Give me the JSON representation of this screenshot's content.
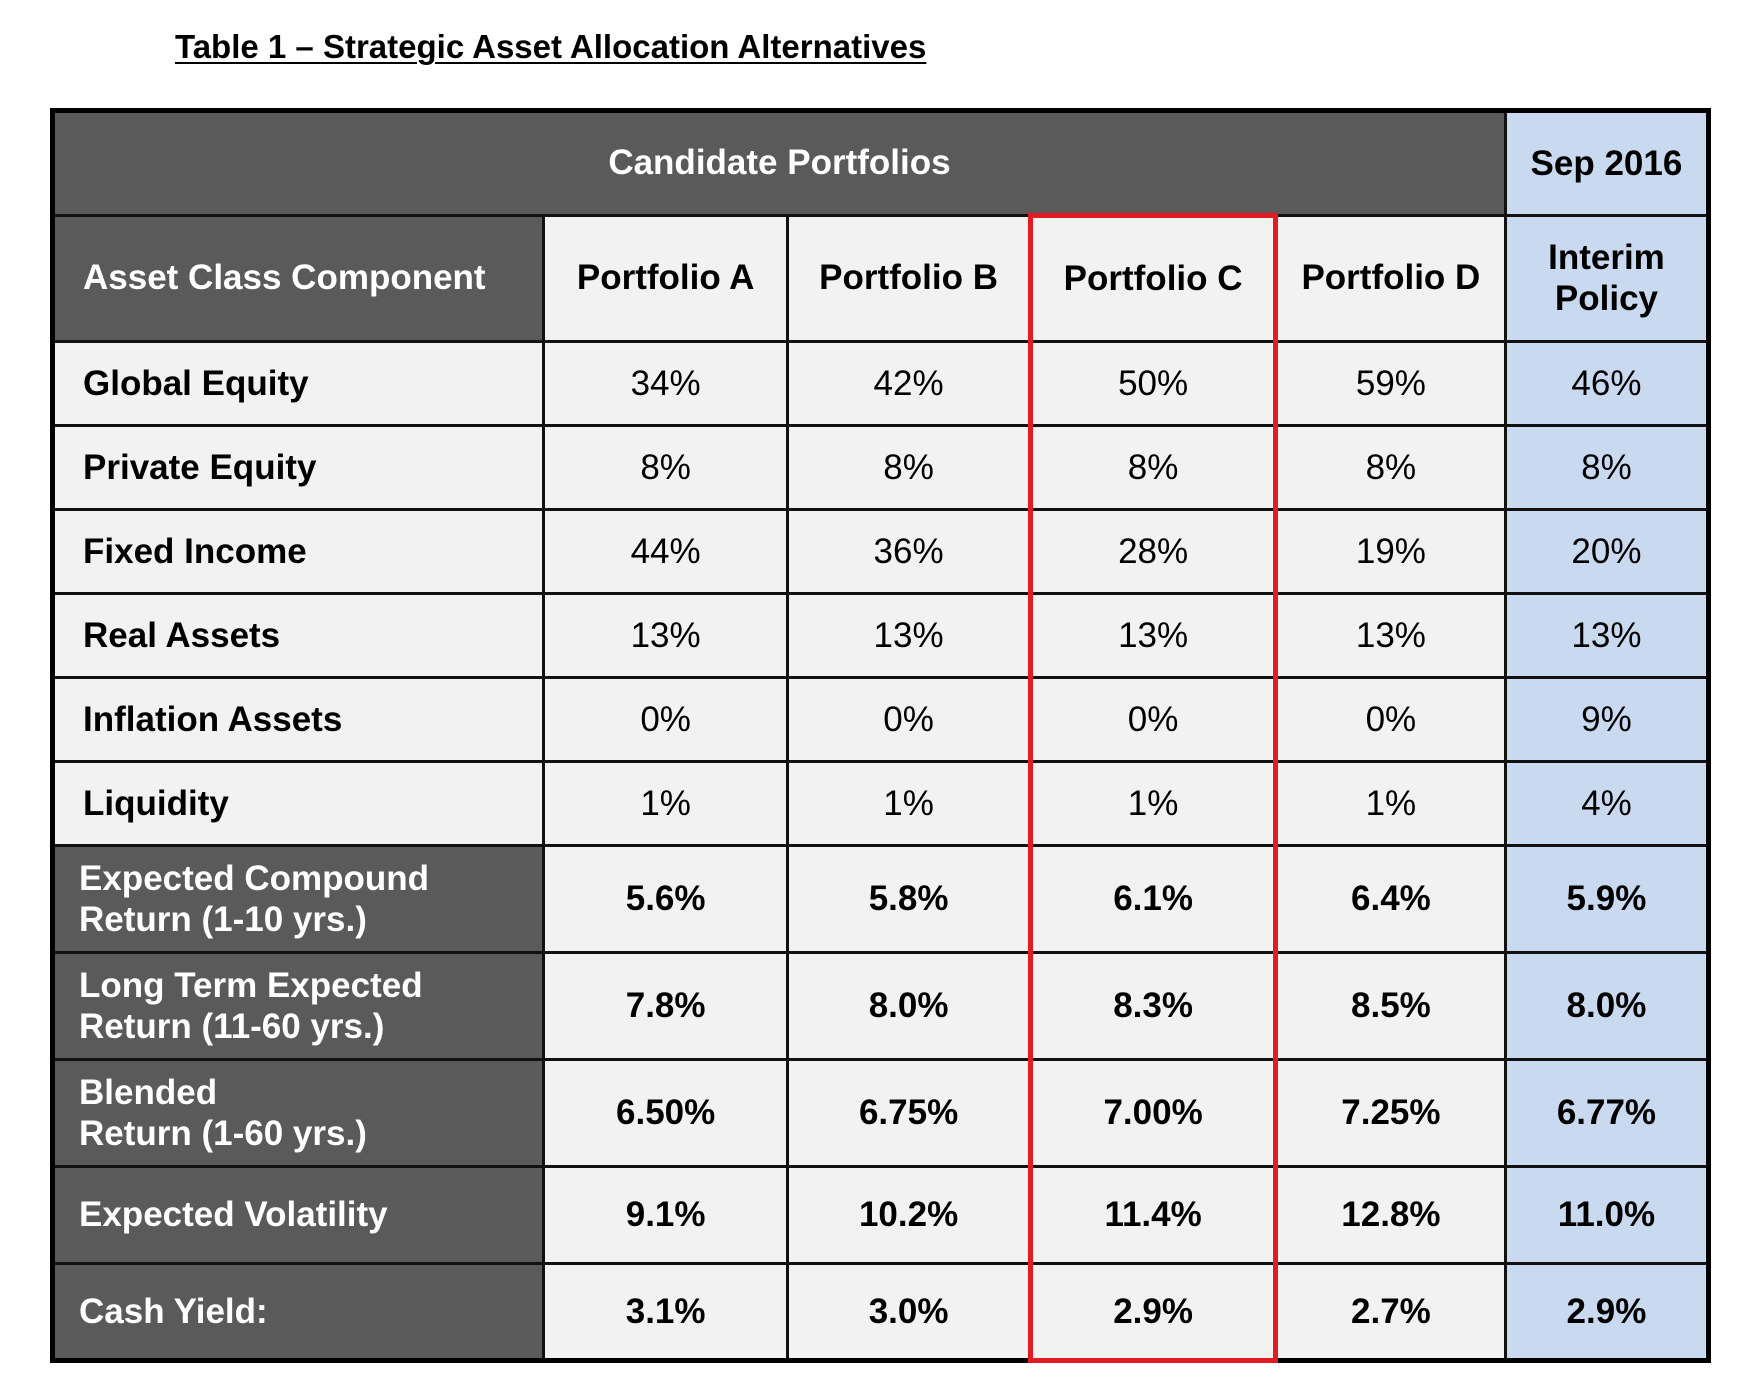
{
  "title": "Table 1 – Strategic Asset Allocation Alternatives",
  "band": {
    "candidate_label": "Candidate Portfolios",
    "policy_label": "Sep 2016"
  },
  "header": {
    "asset_class": "Asset Class Component",
    "portfolio_a": "Portfolio A",
    "portfolio_b": "Portfolio B",
    "portfolio_c": "Portfolio C",
    "portfolio_d": "Portfolio D",
    "interim_line1": "Interim",
    "interim_line2": "Policy"
  },
  "allocations": [
    {
      "label": "Global Equity",
      "a": "34%",
      "b": "42%",
      "c": "50%",
      "d": "59%",
      "policy": "46%"
    },
    {
      "label": "Private Equity",
      "a": "8%",
      "b": "8%",
      "c": "8%",
      "d": "8%",
      "policy": "8%"
    },
    {
      "label": "Fixed Income",
      "a": "44%",
      "b": "36%",
      "c": "28%",
      "d": "19%",
      "policy": "20%"
    },
    {
      "label": "Real Assets",
      "a": "13%",
      "b": "13%",
      "c": "13%",
      "d": "13%",
      "policy": "13%"
    },
    {
      "label": "Inflation Assets",
      "a": "0%",
      "b": "0%",
      "c": "0%",
      "d": "0%",
      "policy": "9%"
    },
    {
      "label": "Liquidity",
      "a": "1%",
      "b": "1%",
      "c": "1%",
      "d": "1%",
      "policy": "4%"
    }
  ],
  "metrics": [
    {
      "line1": "Expected Compound",
      "line2": "Return  (1-10 yrs.)",
      "a": "5.6%",
      "b": "5.8%",
      "c": "6.1%",
      "d": "6.4%",
      "policy": "5.9%"
    },
    {
      "line1": "Long Term Expected",
      "line2": "Return  (11-60 yrs.)",
      "a": "7.8%",
      "b": "8.0%",
      "c": "8.3%",
      "d": "8.5%",
      "policy": "8.0%"
    },
    {
      "line1": "Blended",
      "line2": "Return  (1-60 yrs.)",
      "a": "6.50%",
      "b": "6.75%",
      "c": "7.00%",
      "d": "7.25%",
      "policy": "6.77%"
    },
    {
      "line1": "Expected Volatility",
      "line2": "",
      "a": "9.1%",
      "b": "10.2%",
      "c": "11.4%",
      "d": "12.8%",
      "policy": "11.0%"
    },
    {
      "line1": "Cash Yield:",
      "line2": "",
      "a": "3.1%",
      "b": "3.0%",
      "c": "2.9%",
      "d": "2.7%",
      "policy": "2.9%"
    }
  ],
  "colors": {
    "header_dark": "#595a59",
    "cell_light": "#f2f2f2",
    "policy_blue": "#c9daf0",
    "highlight_red": "#e31b23"
  }
}
